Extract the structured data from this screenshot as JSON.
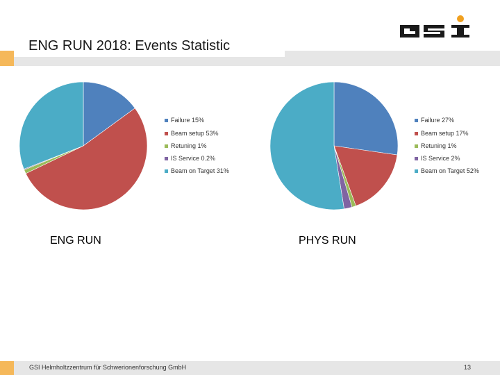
{
  "slide": {
    "title": "ENG RUN 2018: Events Statistic",
    "footer": "GSI Helmholtzzentrum für Schwerionenforschung GmbH",
    "page_number": "13",
    "accent_color": "#f5b85a",
    "logo": {
      "text": "GSI",
      "icon": "gsi-logo",
      "color": "#1a1a1a",
      "dot_color": "#f0a020"
    }
  },
  "chart_data": [
    {
      "type": "pie",
      "label": "ENG RUN",
      "legend_position": "right",
      "categories": [
        "Failure",
        "Beam setup",
        "Retuning",
        "IS Service",
        "Beam on Target"
      ],
      "values": [
        15,
        53,
        1,
        0.2,
        31
      ],
      "legend": [
        "Failure 15%",
        "Beam setup 53%",
        "Retuning 1%",
        "IS Service 0.2%",
        "Beam on Target 31%"
      ],
      "colors": [
        "#4f81bd",
        "#c0504d",
        "#9bbb59",
        "#8064a2",
        "#4bacc6"
      ]
    },
    {
      "type": "pie",
      "label": "PHYS RUN",
      "legend_position": "right",
      "categories": [
        "Failure",
        "Beam setup",
        "Retuning",
        "IS Service",
        "Beam on Target"
      ],
      "values": [
        27,
        17,
        1,
        2,
        52
      ],
      "legend": [
        "Failure 27%",
        "Beam setup 17%",
        "Retuning 1%",
        "IS Service 2%",
        "Beam on Target 52%"
      ],
      "colors": [
        "#4f81bd",
        "#c0504d",
        "#9bbb59",
        "#8064a2",
        "#4bacc6"
      ]
    }
  ]
}
